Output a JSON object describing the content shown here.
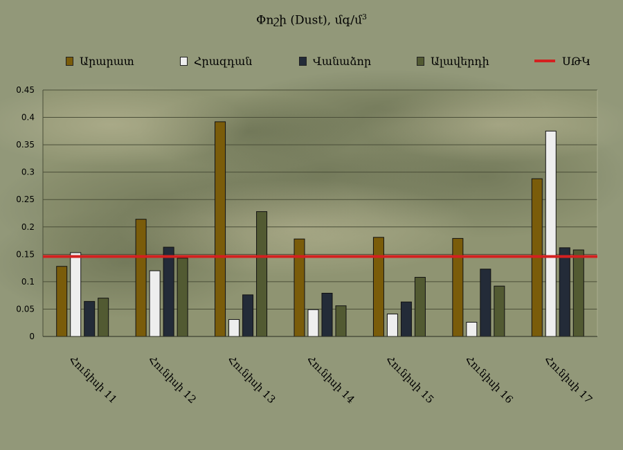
{
  "chart_data": {
    "type": "bar",
    "title": "Փոշի (Dust), մգ/մ",
    "title_superscript": "3",
    "categories": [
      "Հունիսի 11",
      "Հունիսի 12",
      "Հունիսի 13",
      "Հունիսի 14",
      "Հունիսի 15",
      "Հունիսի 16",
      "Հունիսի 17"
    ],
    "series": [
      {
        "name": "Արարատ",
        "color": "#7a5c0a",
        "values": [
          0.128,
          0.214,
          0.392,
          0.178,
          0.181,
          0.179,
          0.288
        ]
      },
      {
        "name": "Հրազդան",
        "color": "#eeeeee",
        "values": [
          0.153,
          0.12,
          0.031,
          0.049,
          0.041,
          0.026,
          0.375
        ]
      },
      {
        "name": "Վանաձոր",
        "color": "#232b38",
        "values": [
          0.064,
          0.163,
          0.076,
          0.079,
          0.063,
          0.123,
          0.162
        ]
      },
      {
        "name": "Ալավերդի",
        "color": "#525a32",
        "values": [
          0.07,
          0.143,
          0.228,
          0.056,
          0.108,
          0.092,
          0.158
        ]
      }
    ],
    "reference_line": {
      "name": "ՍԹԿ",
      "value": 0.146,
      "color": "#d42020"
    },
    "ylim": [
      0,
      0.45
    ],
    "yticks": [
      "0",
      "0.05",
      "0.1",
      "0.15",
      "0.2",
      "0.25",
      "0.3",
      "0.35",
      "0.4",
      "0.45"
    ],
    "grid": true,
    "legend_position": "top"
  }
}
